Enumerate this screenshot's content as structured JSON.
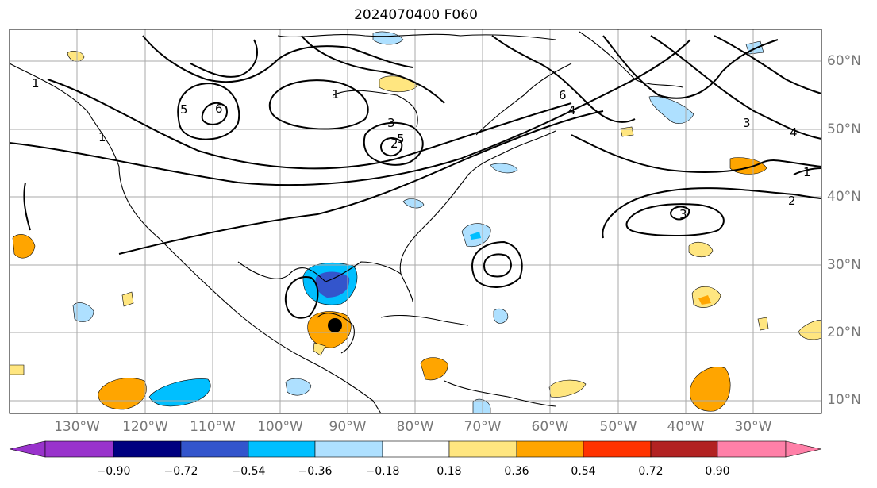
{
  "title": "2024070400 F060",
  "map": {
    "lat_labels": [
      "60°N",
      "50°N",
      "40°N",
      "30°N",
      "20°N",
      "10°N"
    ],
    "lon_labels": [
      "130°W",
      "120°W",
      "110°W",
      "100°W",
      "90°W",
      "80°W",
      "70°W",
      "60°W",
      "50°W",
      "40°W",
      "30°W"
    ],
    "contour_labels": [
      "1",
      "1",
      "2",
      "3",
      "3",
      "4",
      "4",
      "5",
      "5",
      "6",
      "6",
      "1",
      "2",
      "3",
      "1"
    ],
    "storm_marker": {
      "lat": 21,
      "lon": "91W"
    }
  },
  "colorbar": {
    "ticks": [
      "−0.90",
      "−0.72",
      "−0.54",
      "−0.36",
      "−0.18",
      "0.18",
      "0.36",
      "0.54",
      "0.72",
      "0.90"
    ],
    "colors": [
      "#9933cc",
      "#000080",
      "#3355cc",
      "#00bfff",
      "#aee0ff",
      "#ffffff",
      "#ffe680",
      "#ffa500",
      "#ff3300",
      "#b22222",
      "#ff80a8"
    ]
  }
}
